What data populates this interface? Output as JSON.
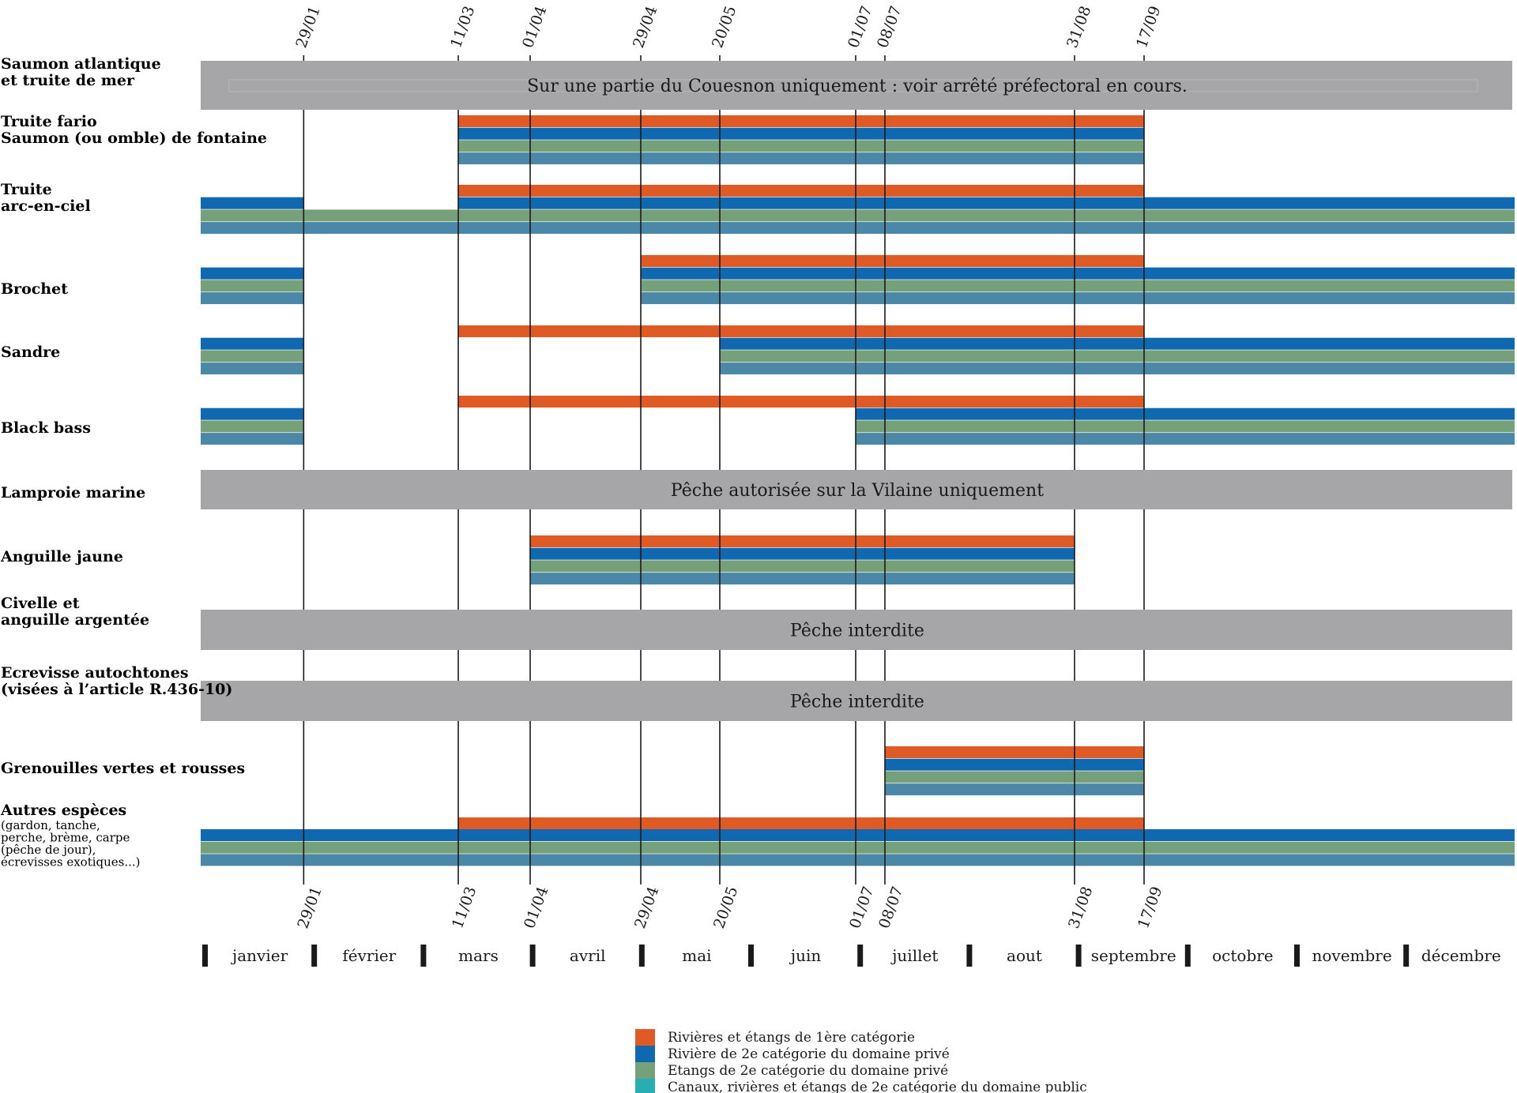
{
  "chart_data": {
    "type": "gantt",
    "tick_dates": [
      "29/01",
      "11/03",
      "01/04",
      "29/04",
      "20/05",
      "01/07",
      "08/07",
      "31/08",
      "17/09"
    ],
    "months": [
      "janvier",
      "février",
      "mars",
      "avril",
      "mai",
      "juin",
      "juillet",
      "aout",
      "septembre",
      "octobre",
      "novembre",
      "décembre"
    ],
    "categories": [
      {
        "key": "cat1",
        "color": "#e05a25",
        "label": "Rivières et étangs de 1ère catégorie"
      },
      {
        "key": "cat2_riv",
        "color": "#0f68b0",
        "label": "Rivière de 2e catégorie du domaine privé"
      },
      {
        "key": "cat2_etang",
        "color": "#75a07a",
        "label": "Etangs de 2e catégorie du domaine privé"
      },
      {
        "key": "cat2_public",
        "color": "#4b87a6",
        "label": "Canaux, rivières et étangs de 2e catégorie du domaine public"
      }
    ],
    "legend_color_public": "#26aeb3",
    "species": [
      {
        "name": [
          "Saumon atlantique",
          "et truite de mer"
        ],
        "sub": [],
        "band": "Sur une partie du Couesnon uniquement : voir arrêté préfectoral en cours.",
        "bars": []
      },
      {
        "name": [
          "Truite fario",
          "Saumon (ou omble) de fontaine"
        ],
        "sub": [],
        "band": null,
        "bars": [
          {
            "cat": "cat1",
            "periods": [
              [
                "11/03",
                "17/09"
              ]
            ]
          },
          {
            "cat": "cat2_riv",
            "periods": [
              [
                "11/03",
                "17/09"
              ]
            ]
          },
          {
            "cat": "cat2_etang",
            "periods": [
              [
                "11/03",
                "17/09"
              ]
            ]
          },
          {
            "cat": "cat2_public",
            "periods": [
              [
                "11/03",
                "17/09"
              ]
            ]
          }
        ]
      },
      {
        "name": [
          "Truite",
          "arc-en-ciel"
        ],
        "sub": [],
        "band": null,
        "bars": [
          {
            "cat": "cat1",
            "periods": [
              [
                "11/03",
                "17/09"
              ]
            ]
          },
          {
            "cat": "cat2_riv",
            "periods": [
              [
                "01/01",
                "29/01"
              ],
              [
                "11/03",
                "31/12"
              ]
            ]
          },
          {
            "cat": "cat2_etang",
            "periods": [
              [
                "01/01",
                "31/12"
              ]
            ]
          },
          {
            "cat": "cat2_public",
            "periods": [
              [
                "01/01",
                "31/12"
              ]
            ]
          }
        ]
      },
      {
        "name": [
          "Brochet"
        ],
        "sub": [],
        "band": null,
        "bars": [
          {
            "cat": "cat1",
            "periods": [
              [
                "29/04",
                "17/09"
              ]
            ]
          },
          {
            "cat": "cat2_riv",
            "periods": [
              [
                "01/01",
                "29/01"
              ],
              [
                "29/04",
                "31/12"
              ]
            ]
          },
          {
            "cat": "cat2_etang",
            "periods": [
              [
                "01/01",
                "29/01"
              ],
              [
                "29/04",
                "31/12"
              ]
            ]
          },
          {
            "cat": "cat2_public",
            "periods": [
              [
                "01/01",
                "29/01"
              ],
              [
                "29/04",
                "31/12"
              ]
            ]
          }
        ]
      },
      {
        "name": [
          "Sandre"
        ],
        "sub": [],
        "band": null,
        "bars": [
          {
            "cat": "cat1",
            "periods": [
              [
                "11/03",
                "17/09"
              ]
            ]
          },
          {
            "cat": "cat2_riv",
            "periods": [
              [
                "01/01",
                "29/01"
              ],
              [
                "20/05",
                "31/12"
              ]
            ]
          },
          {
            "cat": "cat2_etang",
            "periods": [
              [
                "01/01",
                "29/01"
              ],
              [
                "20/05",
                "31/12"
              ]
            ]
          },
          {
            "cat": "cat2_public",
            "periods": [
              [
                "01/01",
                "29/01"
              ],
              [
                "20/05",
                "31/12"
              ]
            ]
          }
        ]
      },
      {
        "name": [
          "Black bass"
        ],
        "sub": [],
        "band": null,
        "bars": [
          {
            "cat": "cat1",
            "periods": [
              [
                "11/03",
                "17/09"
              ]
            ]
          },
          {
            "cat": "cat2_riv",
            "periods": [
              [
                "01/01",
                "29/01"
              ],
              [
                "01/07",
                "31/12"
              ]
            ]
          },
          {
            "cat": "cat2_etang",
            "periods": [
              [
                "01/01",
                "29/01"
              ],
              [
                "01/07",
                "31/12"
              ]
            ]
          },
          {
            "cat": "cat2_public",
            "periods": [
              [
                "01/01",
                "29/01"
              ],
              [
                "01/07",
                "31/12"
              ]
            ]
          }
        ]
      },
      {
        "name": [
          "Lamproie marine"
        ],
        "sub": [],
        "band": "Pêche autorisée sur la Vilaine uniquement",
        "bars": []
      },
      {
        "name": [
          "Anguille jaune"
        ],
        "sub": [],
        "band": null,
        "bars": [
          {
            "cat": "cat1",
            "periods": [
              [
                "01/04",
                "31/08"
              ]
            ]
          },
          {
            "cat": "cat2_riv",
            "periods": [
              [
                "01/04",
                "31/08"
              ]
            ]
          },
          {
            "cat": "cat2_etang",
            "periods": [
              [
                "01/04",
                "31/08"
              ]
            ]
          },
          {
            "cat": "cat2_public",
            "periods": [
              [
                "01/04",
                "31/08"
              ]
            ]
          }
        ]
      },
      {
        "name": [
          "Civelle et",
          "anguille argentée"
        ],
        "sub": [],
        "band": "Pêche interdite",
        "bars": []
      },
      {
        "name": [
          "Ecrevisse autochtones",
          "(visées à l’article R.436-10)"
        ],
        "sub": [],
        "band": "Pêche interdite",
        "bars": []
      },
      {
        "name": [
          "Grenouilles vertes et rousses"
        ],
        "sub": [],
        "band": null,
        "bars": [
          {
            "cat": "cat1",
            "periods": [
              [
                "08/07",
                "17/09"
              ]
            ]
          },
          {
            "cat": "cat2_riv",
            "periods": [
              [
                "08/07",
                "17/09"
              ]
            ]
          },
          {
            "cat": "cat2_etang",
            "periods": [
              [
                "08/07",
                "17/09"
              ]
            ]
          },
          {
            "cat": "cat2_public",
            "periods": [
              [
                "08/07",
                "17/09"
              ]
            ]
          }
        ]
      },
      {
        "name": [
          "Autres espèces"
        ],
        "sub": [
          "(gardon, tanche,",
          "perche, brème, carpe",
          "(pêche de jour),",
          "écrevisses exotiques...)"
        ],
        "band": null,
        "bars": [
          {
            "cat": "cat1",
            "periods": [
              [
                "11/03",
                "17/09"
              ]
            ]
          },
          {
            "cat": "cat2_riv",
            "periods": [
              [
                "01/01",
                "31/12"
              ]
            ]
          },
          {
            "cat": "cat2_etang",
            "periods": [
              [
                "01/01",
                "31/12"
              ]
            ]
          },
          {
            "cat": "cat2_public",
            "periods": [
              [
                "01/01",
                "31/12"
              ]
            ]
          }
        ]
      }
    ]
  }
}
